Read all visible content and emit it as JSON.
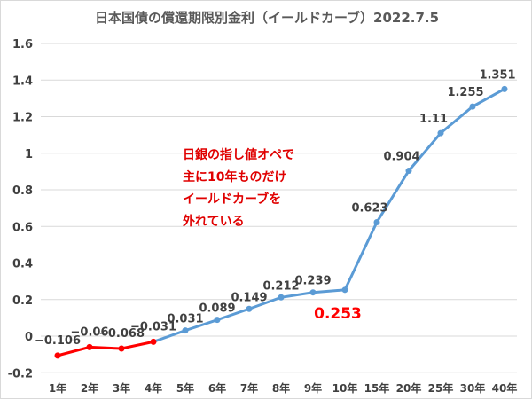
{
  "chart_data": {
    "type": "line",
    "title": "日本国債の償還期限別金利（イールドカーブ）2022.7.5",
    "categories": [
      "1年",
      "2年",
      "3年",
      "4年",
      "5年",
      "6年",
      "7年",
      "8年",
      "9年",
      "10年",
      "15年",
      "20年",
      "25年",
      "30年",
      "40年"
    ],
    "values": [
      -0.106,
      -0.06,
      -0.068,
      -0.031,
      0.031,
      0.089,
      0.149,
      0.212,
      0.239,
      0.253,
      0.623,
      0.904,
      1.11,
      1.255,
      1.351
    ],
    "data_labels": [
      "-0.106",
      "-0.06",
      "-0.068",
      "-0.031",
      "0.031",
      "0.089",
      "0.149",
      "0.212",
      "0.239",
      "0.253",
      "0.623",
      "0.904",
      "1.11",
      "1.255",
      "1.351"
    ],
    "highlight_red_range": [
      "1年",
      "4年"
    ],
    "highlight_label": "10年",
    "ylim": [
      -0.2,
      1.6
    ],
    "yticks": [
      -0.2,
      0,
      0.2,
      0.4,
      0.6,
      0.8,
      1,
      1.2,
      1.4,
      1.6
    ],
    "ytick_labels": [
      "-0.2",
      "0",
      "0.2",
      "0.4",
      "0.6",
      "0.8",
      "1",
      "1.2",
      "1.4",
      "1.6"
    ],
    "grid": true,
    "xlabel": "",
    "ylabel": "",
    "colors": {
      "main": "#5b9bd5",
      "highlight": "#ff0000",
      "annotation": "#e00000",
      "text": "#404040",
      "grid": "#d9d9d9"
    },
    "annotation": "日銀の指し値オペで\n主に10年ものだけ\nイールドカーブを\n外れている"
  }
}
